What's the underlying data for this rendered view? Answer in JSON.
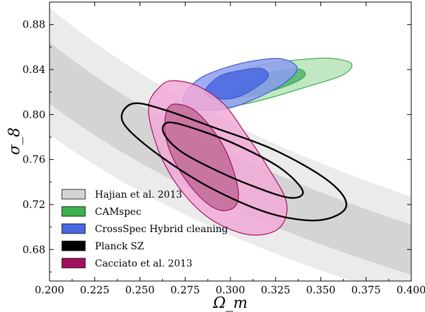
{
  "chart_data": {
    "type": "contour",
    "xlabel": "Ω_m",
    "ylabel": "σ_8",
    "xlim": [
      0.2,
      0.4
    ],
    "ylim": [
      0.652,
      0.9
    ],
    "xticks": [
      "0.200",
      "0.225",
      "0.250",
      "0.275",
      "0.300",
      "0.325",
      "0.350",
      "0.375",
      "0.400"
    ],
    "yticks": [
      "0.68",
      "0.72",
      "0.76",
      "0.80",
      "0.84",
      "0.88"
    ],
    "legend_position": "lower-left",
    "band": {
      "name": "Hajian et al. 2013",
      "relation": "sigma8 = S * (0.27 / Omega_m)^0.3",
      "S_1sigma": [
        0.74,
        0.79
      ],
      "S_2sigma": [
        0.715,
        0.818
      ],
      "colors": {
        "inner": "#d4d4d4",
        "outer": "#ebebeb"
      }
    },
    "series": [
      {
        "name": "CAMspec",
        "color": "#3aa64f",
        "fill_outer": "#b6e4b7",
        "fill_inner": "#4fb46a",
        "contours": [
          {
            "level": "2sigma",
            "points": [
              [
                0.289,
                0.82
              ],
              [
                0.3,
                0.835
              ],
              [
                0.32,
                0.845
              ],
              [
                0.34,
                0.849
              ],
              [
                0.356,
                0.85
              ],
              [
                0.367,
                0.845
              ],
              [
                0.362,
                0.835
              ],
              [
                0.345,
                0.826
              ],
              [
                0.32,
                0.814
              ],
              [
                0.3,
                0.807
              ],
              [
                0.292,
                0.807
              ]
            ]
          },
          {
            "level": "1sigma",
            "points": [
              [
                0.303,
                0.821
              ],
              [
                0.316,
                0.834
              ],
              [
                0.33,
                0.84
              ],
              [
                0.339,
                0.84
              ],
              [
                0.341,
                0.834
              ],
              [
                0.332,
                0.826
              ],
              [
                0.316,
                0.818
              ],
              [
                0.305,
                0.816
              ]
            ]
          }
        ]
      },
      {
        "name": "CrossSpec Hybrid cleaning",
        "color": "#3d5ad0",
        "fill_outer": "#8d9ef0",
        "fill_inner": "#4a67e0",
        "contours": [
          {
            "level": "2sigma",
            "points": [
              [
                0.274,
                0.816
              ],
              [
                0.283,
                0.832
              ],
              [
                0.3,
                0.843
              ],
              [
                0.318,
                0.849
              ],
              [
                0.33,
                0.849
              ],
              [
                0.337,
                0.841
              ],
              [
                0.33,
                0.828
              ],
              [
                0.315,
                0.815
              ],
              [
                0.3,
                0.806
              ],
              [
                0.285,
                0.804
              ],
              [
                0.276,
                0.808
              ]
            ]
          },
          {
            "level": "1sigma",
            "points": [
              [
                0.286,
                0.822
              ],
              [
                0.294,
                0.834
              ],
              [
                0.305,
                0.839
              ],
              [
                0.317,
                0.841
              ],
              [
                0.321,
                0.834
              ],
              [
                0.314,
                0.824
              ],
              [
                0.303,
                0.815
              ],
              [
                0.293,
                0.814
              ],
              [
                0.287,
                0.817
              ]
            ]
          }
        ]
      },
      {
        "name": "Planck SZ",
        "color": "#000000",
        "contours": [
          {
            "level": "2sigma",
            "points": [
              [
                0.247,
                0.81
              ],
              [
                0.264,
                0.804
              ],
              [
                0.29,
                0.789
              ],
              [
                0.325,
                0.768
              ],
              [
                0.355,
                0.74
              ],
              [
                0.364,
                0.718
              ],
              [
                0.349,
                0.706
              ],
              [
                0.322,
                0.712
              ],
              [
                0.29,
                0.734
              ],
              [
                0.263,
                0.761
              ],
              [
                0.244,
                0.786
              ],
              [
                0.24,
                0.8
              ]
            ]
          },
          {
            "level": "1sigma",
            "points": [
              [
                0.266,
                0.793
              ],
              [
                0.283,
                0.786
              ],
              [
                0.305,
                0.772
              ],
              [
                0.328,
                0.752
              ],
              [
                0.34,
                0.732
              ],
              [
                0.333,
                0.726
              ],
              [
                0.313,
                0.736
              ],
              [
                0.29,
                0.752
              ],
              [
                0.272,
                0.768
              ],
              [
                0.263,
                0.784
              ]
            ]
          }
        ]
      },
      {
        "name": "Cacciato et al. 2013",
        "color": "#a0125f",
        "fill_outer": "#f1a9d6",
        "fill_inner": "#c26b99",
        "contours": [
          {
            "level": "2sigma",
            "points": [
              [
                0.26,
                0.823
              ],
              [
                0.267,
                0.83
              ],
              [
                0.281,
                0.826
              ],
              [
                0.296,
                0.81
              ],
              [
                0.308,
                0.784
              ],
              [
                0.32,
                0.755
              ],
              [
                0.331,
                0.722
              ],
              [
                0.327,
                0.699
              ],
              [
                0.311,
                0.693
              ],
              [
                0.291,
                0.705
              ],
              [
                0.275,
                0.728
              ],
              [
                0.263,
                0.758
              ],
              [
                0.256,
                0.79
              ],
              [
                0.255,
                0.81
              ]
            ]
          },
          {
            "level": "1sigma",
            "points": [
              [
                0.264,
                0.798
              ],
              [
                0.268,
                0.809
              ],
              [
                0.279,
                0.805
              ],
              [
                0.289,
                0.789
              ],
              [
                0.298,
                0.766
              ],
              [
                0.304,
                0.736
              ],
              [
                0.303,
                0.719
              ],
              [
                0.294,
                0.715
              ],
              [
                0.283,
                0.727
              ],
              [
                0.272,
                0.75
              ],
              [
                0.265,
                0.775
              ]
            ]
          }
        ]
      }
    ]
  },
  "legend": [
    {
      "label": "Hajian et al. 2013",
      "swatch": "#d4d4d4"
    },
    {
      "label": "CAMspec",
      "swatch": "#3cb34e"
    },
    {
      "label": "CrossSpec Hybrid cleaning",
      "swatch": "#4a67e0"
    },
    {
      "label": "Planck SZ",
      "swatch": "#000000"
    },
    {
      "label": "Cacciato et al. 2013",
      "swatch": "#a0125f"
    }
  ]
}
